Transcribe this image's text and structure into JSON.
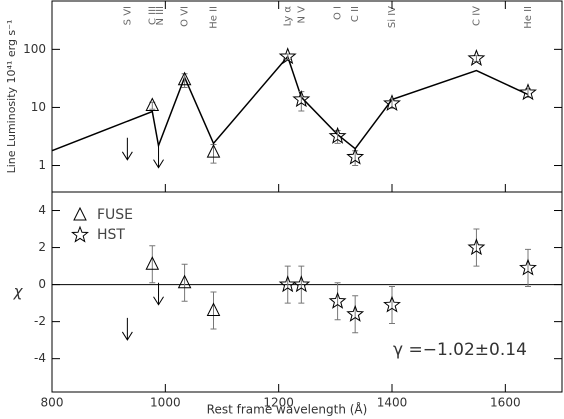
{
  "chart_data": [
    {
      "type": "line",
      "y_label": "Line Luminosity 10⁴¹ erg s⁻¹",
      "yscale": "log",
      "xlim": [
        800,
        1700
      ],
      "ylim": [
        0.35,
        680
      ],
      "yticks": [
        1,
        10,
        100
      ],
      "annotations": [
        {
          "text": "S VI",
          "x": 933
        },
        {
          "text": "C III",
          "x": 977
        },
        {
          "text": "N III",
          "x": 991
        },
        {
          "text": "O VI",
          "x": 1034
        },
        {
          "text": "He II",
          "x": 1085
        },
        {
          "text": "Ly α",
          "x": 1216
        },
        {
          "text": "N V",
          "x": 1240
        },
        {
          "text": "O I",
          "x": 1304
        },
        {
          "text": "C II",
          "x": 1335
        },
        {
          "text": "Si IV",
          "x": 1400
        },
        {
          "text": "C IV",
          "x": 1549
        },
        {
          "text": "He II",
          "x": 1640
        }
      ],
      "series": [
        {
          "marker": "none",
          "color": "#000000",
          "x": [
            800,
            977,
            988,
            1034,
            1085,
            1216,
            1240,
            1304,
            1335,
            1400,
            1549,
            1640
          ],
          "values": [
            1.8,
            8.5,
            2.2,
            33,
            2.4,
            75,
            15,
            3.4,
            1.95,
            13.7,
            43,
            16.7
          ]
        },
        {
          "marker": "triangle",
          "color": "#000000",
          "x": [
            977,
            1034,
            1085
          ],
          "values": [
            10.8,
            30,
            1.7
          ],
          "errors": [
            1.5,
            8,
            0.6
          ]
        },
        {
          "marker": "star",
          "color": "#000000",
          "x": [
            1216,
            1240,
            1304,
            1335,
            1400,
            1549,
            1640
          ],
          "values": [
            75,
            13.7,
            3.2,
            1.4,
            11.7,
            70,
            18
          ],
          "errors": [
            8,
            5,
            0.8,
            0.4,
            2,
            8,
            3
          ]
        },
        {
          "marker": "arrow",
          "color": "#000000",
          "x": [
            933,
            988
          ],
          "values": [
            3.0,
            2.2
          ]
        }
      ]
    },
    {
      "type": "scatter",
      "x_label": "Rest frame wavelength (Å)",
      "y_label": "χ",
      "xlim": [
        800,
        1700
      ],
      "ylim": [
        -5.8,
        5
      ],
      "xticks": [
        800,
        1000,
        1200,
        1400,
        1600
      ],
      "yticks": [
        -4,
        -2,
        0,
        2,
        4
      ],
      "reference_line": 0,
      "legend": "upper left",
      "annotation": "γ =−1.02±0.14",
      "series": [
        {
          "name": "FUSE",
          "marker": "triangle",
          "color": "#000000",
          "x": [
            977,
            1034,
            1085
          ],
          "values": [
            1.1,
            0.1,
            -1.4
          ],
          "errors": [
            1,
            1,
            1
          ]
        },
        {
          "name": "HST",
          "marker": "star",
          "color": "#000000",
          "x": [
            1216,
            1240,
            1304,
            1335,
            1400,
            1549,
            1640
          ],
          "values": [
            0,
            0,
            -0.9,
            -1.6,
            -1.1,
            2.0,
            0.9
          ],
          "errors": [
            1,
            1,
            1,
            1,
            1,
            1,
            1
          ]
        },
        {
          "marker": "arrow",
          "color": "#000000",
          "x": [
            933,
            988
          ],
          "values": [
            -1.8,
            0.1
          ]
        }
      ]
    }
  ]
}
